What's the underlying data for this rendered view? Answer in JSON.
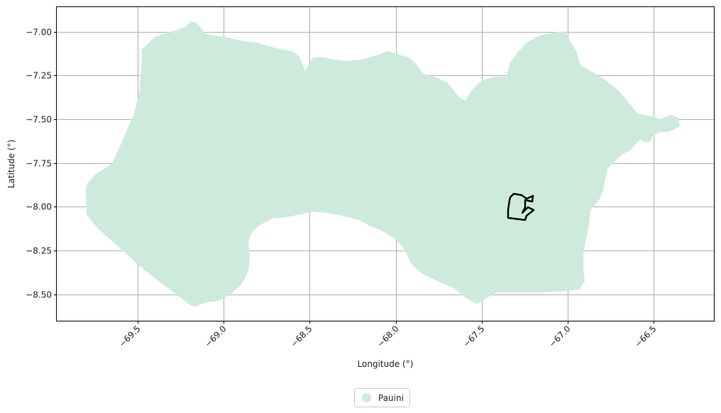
{
  "map": {
    "xlabel": "Longitude (°)",
    "ylabel": "Latitude (°)",
    "xlim": [
      -69.97,
      -66.15
    ],
    "ylim": [
      -8.65,
      -6.86
    ],
    "x_ticks": [
      -69.5,
      -69.0,
      -68.5,
      -68.0,
      -67.5,
      -67.0,
      -66.5
    ],
    "x_tick_labels": [
      "−69.5",
      "−69.0",
      "−68.5",
      "−68.0",
      "−67.5",
      "−67.0",
      "−66.5"
    ],
    "y_ticks": [
      -7.0,
      -7.25,
      -7.5,
      -7.75,
      -8.0,
      -8.25,
      -8.5
    ],
    "y_tick_labels": [
      "−7.00",
      "−7.25",
      "−7.50",
      "−7.75",
      "−8.00",
      "−8.25",
      "−8.50"
    ],
    "grid": true,
    "fill_color": "#cdeadd",
    "outline_color": "#000000",
    "grid_color": "#b0b0b0"
  },
  "legend": {
    "placement": "bottom-center",
    "items": [
      {
        "label": "Pauini",
        "color": "#cdeadd"
      }
    ]
  }
}
